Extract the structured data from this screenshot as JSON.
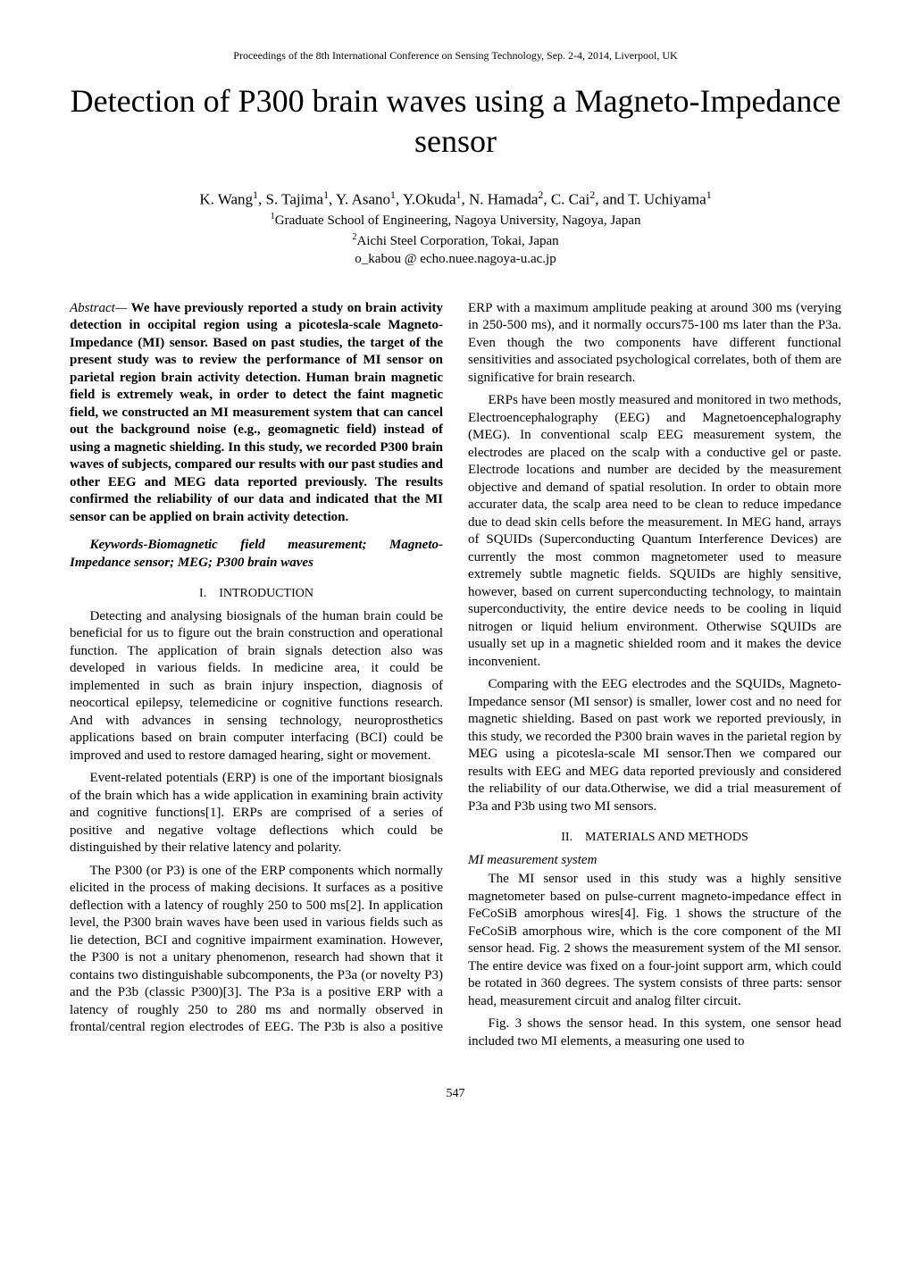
{
  "header_line": "Proceedings of the 8th International Conference on Sensing Technology, Sep. 2-4, 2014, Liverpool, UK",
  "title": "Detection of P300 brain waves using a Magneto-Impedance sensor",
  "authors_html": "K. Wang<sup>1</sup>, S. Tajima<sup>1</sup>, Y. Asano<sup>1</sup>, Y.Okuda<sup>1</sup>, N. Hamada<sup>2</sup>, C. Cai<sup>2</sup>, and T. Uchiyama<sup>1</sup>",
  "affil1_html": "<sup>1</sup>Graduate School of Engineering, Nagoya University, Nagoya, Japan",
  "affil2_html": "<sup>2</sup>Aichi Steel Corporation, Tokai, Japan",
  "email": "o_kabou @ echo.nuee.nagoya-u.ac.jp",
  "abstract_label": "Abstract— ",
  "abstract_text": "We have previously reported a study on brain activity detection in occipital region using a picotesla-scale Magneto-Impedance (MI) sensor. Based on past studies, the target of the present study was to review the performance of MI sensor on parietal region brain activity detection. Human brain magnetic field is extremely weak, in order to detect the faint magnetic field, we constructed an MI measurement system that can cancel out the background noise (e.g., geomagnetic field) instead of using a magnetic shielding. In this study, we recorded P300 brain waves of subjects, compared our results with our past studies and other EEG and MEG data reported previously. The results confirmed the reliability of our data and indicated that the MI sensor can be applied on brain activity detection.",
  "keywords": "Keywords-Biomagnetic field measurement; Magneto-Impedance sensor; MEG; P300 brain waves",
  "sec1_heading": "I. INTRODUCTION",
  "sec1_p1": "Detecting and analysing biosignals of the human brain could be beneficial for us to figure out the brain construction and operational function. The application of brain signals detection also was developed in various fields. In medicine area, it could be implemented in such as brain injury inspection, diagnosis of neocortical epilepsy, telemedicine or cognitive functions research. And with advances in sensing technology, neuroprosthetics applications based on brain computer interfacing (BCI) could be improved and used to restore damaged hearing, sight or movement.",
  "sec1_p2": "Event-related potentials (ERP) is one of the important biosignals of the brain which has a wide application in examining brain activity and cognitive functions[1]. ERPs are comprised of a series of positive and negative voltage deflections which could be distinguished by their relative latency and polarity.",
  "sec1_p3": "The P300 (or P3) is one of the ERP components which normally elicited in the process of making decisions. It surfaces as a positive deflection with a latency of roughly 250 to 500 ms[2]. In application level, the P300 brain waves have been used in various fields such as lie detection, BCI and cognitive impairment examination. However, the P300 is not a unitary phenomenon, research had shown that it contains two distinguishable subcomponents, the P3a (or novelty P3) and the P3b (classic P300)[3]. The P3a is a positive ERP  with a latency of roughly 250 to 280 ms and normally observed  in frontal/central region electrodes of EEG. The P3b is also a positive ERP with a maximum amplitude peaking at around 300 ms (verying in 250-500 ms), and it normally occurs75-100 ms later than the P3a. Even though the two components have different functional sensitivities and associated psychological correlates, both of them are significative for brain research.",
  "sec1_p4": "ERPs have been mostly measured and monitored in two methods, Electroencephalography (EEG) and Magnetoencephalography (MEG). In conventional scalp EEG measurement system, the electrodes are placed on the scalp with a conductive gel or paste. Electrode locations and number are decided by the measurement objective and demand of spatial resolution. In order to obtain more accurater data, the scalp area need to be clean to reduce impedance due to dead skin cells before the measurement. In MEG hand, arrays of SQUIDs (Superconducting Quantum Interference Devices) are currently the most common magnetometer used to measure extremely subtle magnetic fields. SQUIDs are highly sensitive, however, based on current superconducting technology, to maintain superconductivity, the entire device needs to be cooling in liquid nitrogen or liquid helium environment. Otherwise SQUIDs are usually set up in a magnetic shielded room and it makes the device inconvenient.",
  "sec1_p5": "Comparing with the EEG electrodes and the SQUIDs, Magneto-Impedance sensor (MI sensor) is smaller, lower cost and no need for magnetic shielding. Based on past work we reported previously, in this study, we recorded the P300 brain waves in the parietal region by MEG using a picotesla-scale MI sensor.Then we compared our results with EEG and MEG data reported previously and considered the reliability of our data.Otherwise, we did a trial measurement of P3a and P3b using two MI sensors.",
  "sec2_heading": "II. MATERIALS AND METHODS",
  "sec2_sub_heading": "MI measurement system",
  "sec2_p1": "The MI sensor used in this study was a highly sensitive magnetometer based on pulse-current magneto-impedance effect in FeCoSiB amorphous wires[4]. Fig. 1 shows the structure of the FeCoSiB amorphous wire, which is the core component of the MI sensor head. Fig. 2 shows the measurement system of the MI sensor. The entire device was fixed on a four-joint support arm, which could be rotated in 360 degrees. The system consists of three parts: sensor head, measurement circuit and analog filter circuit.",
  "sec2_p2": " Fig. 3 shows the sensor head. In this system, one sensor head included two MI elements, a measuring one used to",
  "page_number": "547"
}
